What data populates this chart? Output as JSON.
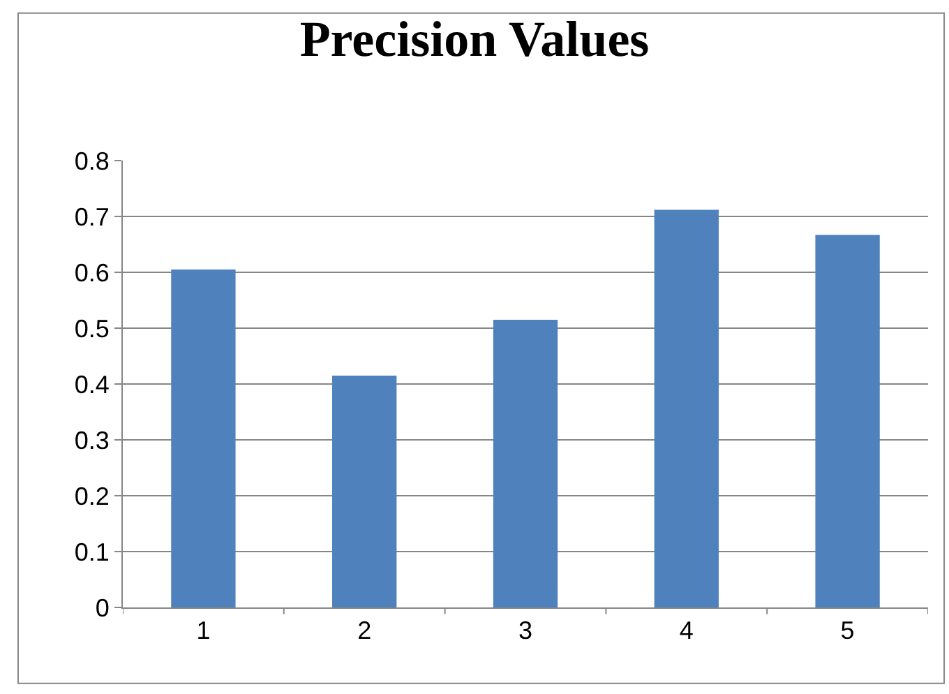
{
  "chart_data": {
    "type": "bar",
    "title": "Precision Values",
    "categories": [
      "1",
      "2",
      "3",
      "4",
      "5"
    ],
    "values": [
      0.605,
      0.415,
      0.515,
      0.712,
      0.667
    ],
    "color": "#4f81bd",
    "ylim": [
      0,
      0.8
    ],
    "yticks": [
      0,
      0.1,
      0.2,
      0.3,
      0.4,
      0.5,
      0.6,
      0.7,
      0.8
    ],
    "grid": "y",
    "legend": false
  }
}
